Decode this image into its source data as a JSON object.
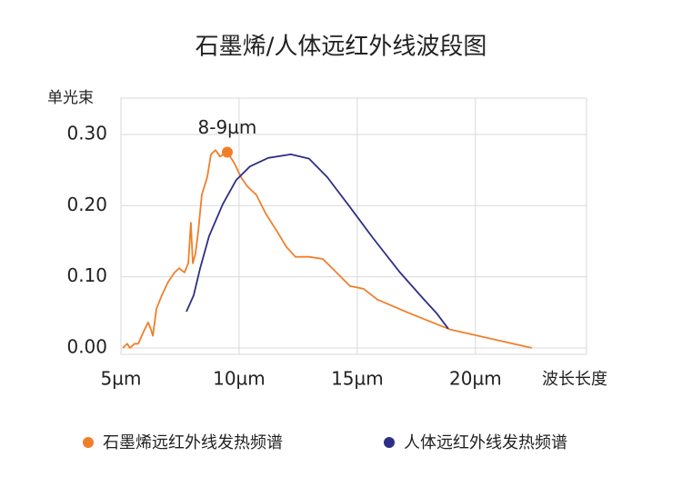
{
  "chart_data": {
    "type": "line",
    "title": "石墨烯/人体远红外线波段图",
    "y_label": "单光束",
    "x_label": "波长长度",
    "xlim": [
      5,
      24.7
    ],
    "ylim": [
      -0.009,
      0.351
    ],
    "xticks": [
      {
        "value": 5,
        "label": "5µm"
      },
      {
        "value": 10,
        "label": "10µm"
      },
      {
        "value": 15,
        "label": "15µm"
      },
      {
        "value": 20,
        "label": "20µm"
      }
    ],
    "yticks": [
      {
        "value": 0,
        "label": "0.00"
      },
      {
        "value": 0.1,
        "label": "0.10"
      },
      {
        "value": 0.2,
        "label": "0.20"
      },
      {
        "value": 0.3,
        "label": "0.30"
      }
    ],
    "grid": true,
    "legend": "bottom",
    "annotation": {
      "text": "8-9µm",
      "x": 9.5,
      "y": 0.275,
      "color": "#f07f2a"
    },
    "series": [
      {
        "name": "石墨烯远红外线发热频谱",
        "color": "#f07f2a",
        "x": [
          5.08,
          5.27,
          5.38,
          5.58,
          5.73,
          5.96,
          6.15,
          6.27,
          6.35,
          6.5,
          6.73,
          7.0,
          7.27,
          7.46,
          7.69,
          7.85,
          7.96,
          8.04,
          8.15,
          8.27,
          8.42,
          8.65,
          8.81,
          9.0,
          9.19,
          9.5,
          9.81,
          10.08,
          10.35,
          10.73,
          11.12,
          11.62,
          12.0,
          12.38,
          12.96,
          13.54,
          14.12,
          14.69,
          15.27,
          15.85,
          17.19,
          18.92,
          20.65,
          22.38
        ],
        "values": [
          0.0,
          0.006,
          0.0,
          0.006,
          0.006,
          0.023,
          0.036,
          0.026,
          0.017,
          0.055,
          0.074,
          0.093,
          0.106,
          0.112,
          0.106,
          0.119,
          0.176,
          0.119,
          0.132,
          0.163,
          0.215,
          0.24,
          0.272,
          0.278,
          0.269,
          0.275,
          0.259,
          0.24,
          0.227,
          0.215,
          0.189,
          0.163,
          0.142,
          0.128,
          0.128,
          0.125,
          0.106,
          0.087,
          0.083,
          0.068,
          0.049,
          0.026,
          0.013,
          0.0
        ]
      },
      {
        "name": "人体远红外线发热频谱",
        "color": "#2d2f86",
        "x": [
          7.77,
          8.08,
          8.35,
          8.73,
          9.31,
          9.88,
          10.46,
          11.23,
          12.19,
          12.96,
          13.73,
          14.69,
          15.65,
          16.81,
          17.77,
          18.35,
          18.85
        ],
        "values": [
          0.051,
          0.074,
          0.112,
          0.157,
          0.202,
          0.236,
          0.255,
          0.267,
          0.272,
          0.266,
          0.24,
          0.198,
          0.155,
          0.106,
          0.07,
          0.049,
          0.027
        ]
      }
    ]
  }
}
